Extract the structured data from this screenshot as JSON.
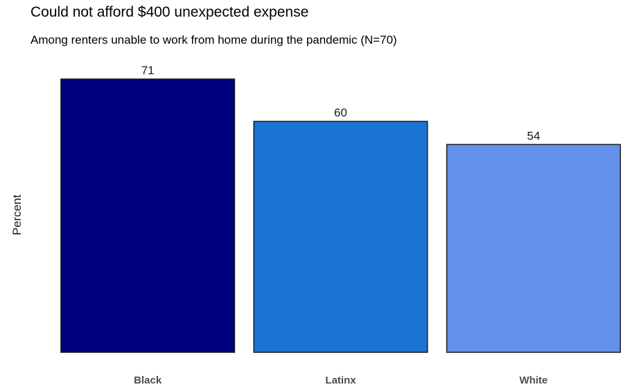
{
  "chart_data": {
    "type": "bar",
    "title": "Could not afford $400 unexpected expense",
    "subtitle": "Among renters unable to work from home during the pandemic (N=70)",
    "xlabel": "",
    "ylabel": "Percent",
    "categories": [
      "Black",
      "Latinx",
      "White"
    ],
    "values": [
      71,
      60,
      54
    ],
    "colors": [
      "#00007f",
      "#1a73d0",
      "#6491eb"
    ],
    "bar_outline": "#1a1a1a",
    "ylim": [
      0,
      71
    ],
    "grid": false,
    "legend": "none",
    "data_labels": [
      "71",
      "60",
      "54"
    ]
  }
}
